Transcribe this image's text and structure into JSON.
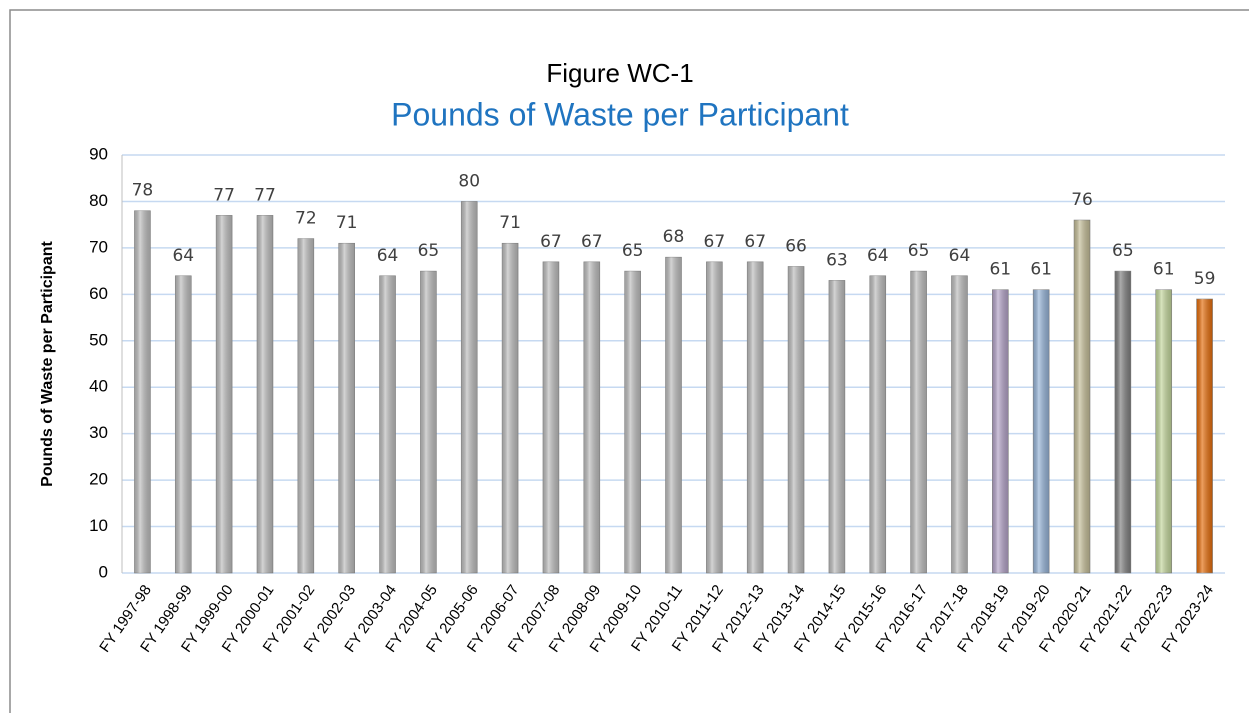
{
  "chart_data": {
    "type": "bar",
    "title": "Figure WC-1",
    "subtitle": "Pounds of Waste per Participant",
    "y_label": "Pounds of Waste per Participant",
    "categories": [
      "FY 1997-98",
      "FY 1998-99",
      "FY 1999-00",
      "FY 2000-01",
      "FY 2001-02",
      "FY 2002-03",
      "FY 2003-04",
      "FY 2004-05",
      "FY 2005-06",
      "FY 2006-07",
      "FY 2007-08",
      "FY 2008-09",
      "FY 2009-10",
      "FY 2010-11",
      "FY 2011-12",
      "FY 2012-13",
      "FY 2013-14",
      "FY 2014-15",
      "FY 2015-16",
      "FY 2016-17",
      "FY 2017-18",
      "FY 2018-19",
      "FY 2019-20",
      "FY 2020-21",
      "FY 2021-22",
      "FY 2022-23",
      "FY 2023-24"
    ],
    "values": [
      78,
      64,
      77,
      77,
      72,
      71,
      64,
      65,
      80,
      71,
      67,
      67,
      65,
      68,
      67,
      67,
      66,
      63,
      64,
      65,
      64,
      61,
      61,
      76,
      65,
      61,
      59
    ],
    "colors": [
      "#bdbdbd",
      "#bdbdbd",
      "#bdbdbd",
      "#bdbdbd",
      "#bdbdbd",
      "#bdbdbd",
      "#bdbdbd",
      "#bdbdbd",
      "#bdbdbd",
      "#bdbdbd",
      "#bdbdbd",
      "#bdbdbd",
      "#bdbdbd",
      "#bdbdbd",
      "#bdbdbd",
      "#bdbdbd",
      "#bdbdbd",
      "#bdbdbd",
      "#bdbdbd",
      "#bdbdbd",
      "#bdbdbd",
      "#b3a2c7",
      "#95b3d7",
      "#c4bd97",
      "#7f7f7f",
      "#c3d69b",
      "#e46c0a"
    ],
    "ylim": [
      0,
      90
    ],
    "yticks": [
      0,
      10,
      20,
      30,
      40,
      50,
      60,
      70,
      80,
      90
    ],
    "grid": true
  }
}
